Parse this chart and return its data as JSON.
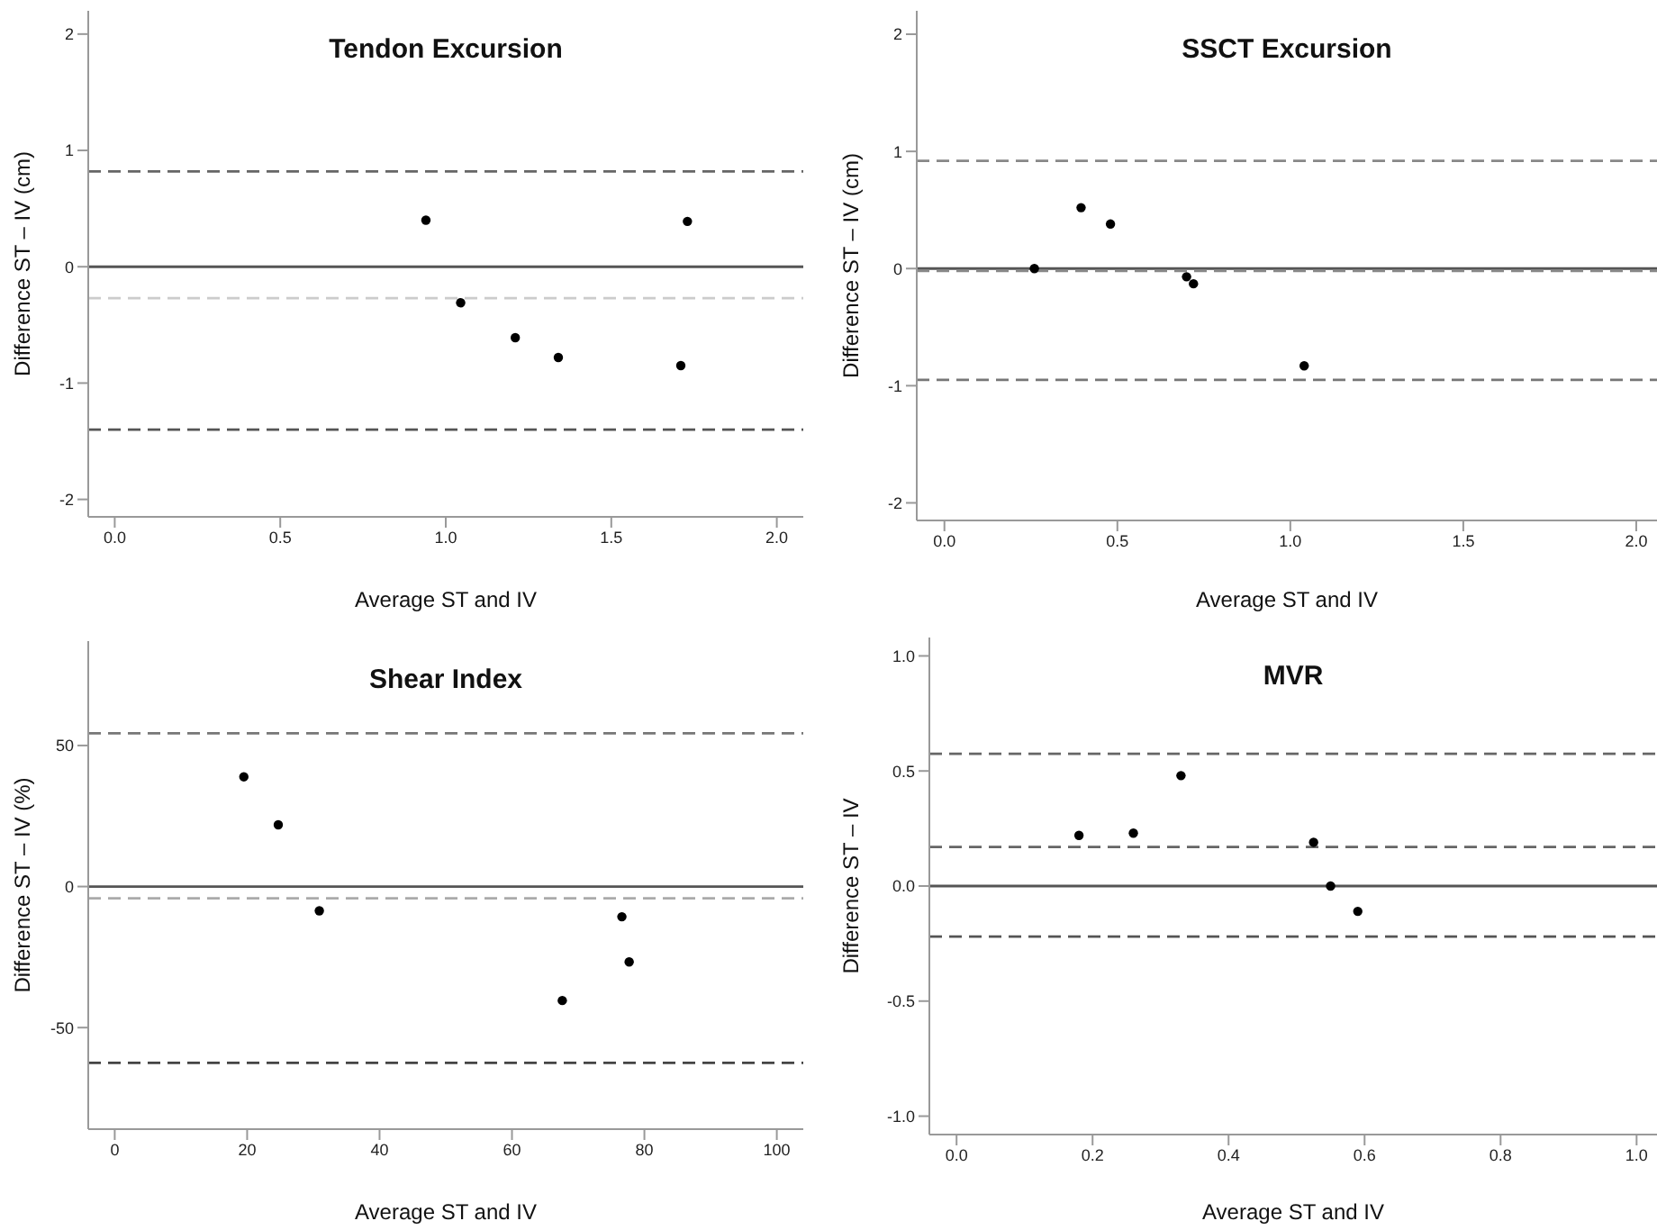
{
  "chart_data": [
    {
      "type": "scatter",
      "title": "Tendon Excursion",
      "xlabel": "Average ST and IV",
      "ylabel": "Difference ST – IV (cm)",
      "marker": "circle",
      "grid": false,
      "xlim": [
        -0.08,
        2.08
      ],
      "xticks": [
        {
          "value": 0,
          "label": "0.0"
        },
        {
          "value": 0.5,
          "label": "0.5"
        },
        {
          "value": 1,
          "label": "1.0"
        },
        {
          "value": 1.5,
          "label": "1.5"
        },
        {
          "value": 2,
          "label": "2.0"
        }
      ],
      "ylim": [
        -2.15,
        2.2
      ],
      "yticks": [
        -2,
        -1,
        0,
        1,
        2
      ],
      "series": [
        {
          "color": "#000000",
          "x": [
            0.94,
            1.045,
            1.21,
            1.34,
            1.71,
            1.73
          ],
          "values": [
            0.4,
            -0.31,
            -0.61,
            -0.78,
            -0.85,
            0.39
          ]
        }
      ],
      "ref_lines": [
        {
          "axis": "y",
          "value": 0,
          "color": "#555555",
          "line_style": "solid"
        },
        {
          "axis": "y",
          "value": 0.82,
          "color": "#666666",
          "line_style": "dashed"
        },
        {
          "axis": "y",
          "value": -1.4,
          "color": "#555555",
          "line_style": "dashed"
        },
        {
          "axis": "y",
          "value": -0.27,
          "color": "#cccccc",
          "line_style": "dashed"
        }
      ]
    },
    {
      "type": "scatter",
      "title": "SSCT Excursion",
      "xlabel": "Average ST and IV",
      "ylabel": "Difference ST – IV (cm)",
      "marker": "circle",
      "grid": false,
      "xlim": [
        -0.08,
        2.06
      ],
      "xticks": [
        {
          "value": 0,
          "label": "0.0"
        },
        {
          "value": 0.5,
          "label": "0.5"
        },
        {
          "value": 1,
          "label": "1.0"
        },
        {
          "value": 1.5,
          "label": "1.5"
        },
        {
          "value": 2,
          "label": "2.0"
        }
      ],
      "ylim": [
        -2.15,
        2.2
      ],
      "yticks": [
        -2,
        -1,
        0,
        1,
        2
      ],
      "series": [
        {
          "color": "#000000",
          "x": [
            0.26,
            0.395,
            0.48,
            0.7,
            0.72,
            1.04
          ],
          "values": [
            0,
            0.52,
            0.38,
            -0.07,
            -0.13,
            -0.83
          ]
        }
      ],
      "ref_lines": [
        {
          "axis": "y",
          "value": 0,
          "color": "#555555",
          "line_style": "solid"
        },
        {
          "axis": "y",
          "value": 0.92,
          "color": "#888888",
          "line_style": "dashed"
        },
        {
          "axis": "y",
          "value": -0.95,
          "color": "#777777",
          "line_style": "dashed"
        },
        {
          "axis": "y",
          "value": -0.02,
          "color": "#888888",
          "line_style": "dashed"
        }
      ]
    },
    {
      "type": "scatter",
      "title": "Shear Index",
      "xlabel": "Average ST and IV",
      "ylabel": "Difference ST – IV (%)",
      "marker": "circle",
      "grid": false,
      "xlim": [
        -4,
        104
      ],
      "xticks": [
        0,
        20,
        40,
        60,
        80,
        100
      ],
      "ylim": [
        -86,
        87
      ],
      "yticks": [
        -50,
        0,
        50
      ],
      "series": [
        {
          "color": "#000000",
          "x": [
            19.5,
            24.7,
            30.9,
            67.6,
            76.6,
            77.7
          ],
          "values": [
            38.9,
            21.9,
            -8.6,
            -40.4,
            -10.7,
            -26.7
          ]
        }
      ],
      "ref_lines": [
        {
          "axis": "y",
          "value": 0,
          "color": "#555555",
          "line_style": "solid"
        },
        {
          "axis": "y",
          "value": 54.3,
          "color": "#777777",
          "line_style": "dashed"
        },
        {
          "axis": "y",
          "value": -62.5,
          "color": "#444444",
          "line_style": "dashed"
        },
        {
          "axis": "y",
          "value": -4.2,
          "color": "#aaaaaa",
          "line_style": "dashed"
        }
      ]
    },
    {
      "type": "scatter",
      "title": "MVR",
      "xlabel": "Average ST and IV",
      "ylabel": "Difference ST – IV",
      "marker": "circle",
      "grid": false,
      "xlim": [
        -0.04,
        1.03
      ],
      "xticks": [
        {
          "value": 0,
          "label": "0.0"
        },
        {
          "value": 0.2,
          "label": "0.2"
        },
        {
          "value": 0.4,
          "label": "0.4"
        },
        {
          "value": 0.6,
          "label": "0.6"
        },
        {
          "value": 0.8,
          "label": "0.8"
        },
        {
          "value": 1,
          "label": "1.0"
        }
      ],
      "ylim": [
        -1.08,
        1.08
      ],
      "yticks": [
        {
          "value": -1,
          "label": "-1.0"
        },
        {
          "value": -0.5,
          "label": "-0.5"
        },
        {
          "value": 0,
          "label": "0.0"
        },
        {
          "value": 0.5,
          "label": "0.5"
        },
        {
          "value": 1,
          "label": "1.0"
        }
      ],
      "series": [
        {
          "color": "#000000",
          "x": [
            0.18,
            0.26,
            0.33,
            0.525,
            0.55,
            0.59
          ],
          "values": [
            0.22,
            0.23,
            0.48,
            0.19,
            0,
            -0.11
          ]
        }
      ],
      "ref_lines": [
        {
          "axis": "y",
          "value": 0,
          "color": "#555555",
          "line_style": "solid"
        },
        {
          "axis": "y",
          "value": 0.575,
          "color": "#666666",
          "line_style": "dashed"
        },
        {
          "axis": "y",
          "value": 0.17,
          "color": "#666666",
          "line_style": "dashed"
        },
        {
          "axis": "y",
          "value": -0.22,
          "color": "#555555",
          "line_style": "dashed"
        }
      ]
    }
  ]
}
